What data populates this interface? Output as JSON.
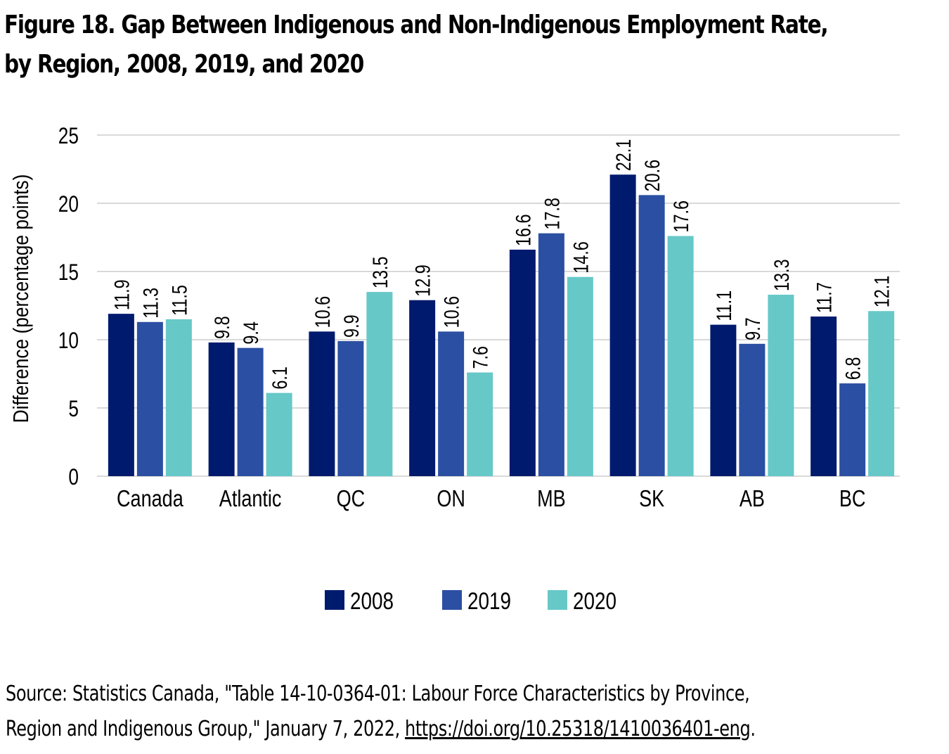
{
  "figure": {
    "title_line1": "Figure 18. Gap Between Indigenous and Non-Indigenous Employment Rate,",
    "title_line2": "by Region, 2008, 2019, and 2020",
    "source_line1": "Source: Statistics Canada, \"Table 14-10-0364-01: Labour Force Characteristics by Province,",
    "source_line2_text": "Region and Indigenous Group,\" January 7, 2022, ",
    "source_link": "https://doi.org/10.25318/1410036401-eng",
    "source_end": "."
  },
  "chart_data": {
    "type": "bar",
    "title": "Figure 18. Gap Between Indigenous and Non-Indigenous Employment Rate, by Region, 2008, 2019, and 2020",
    "xlabel": "",
    "ylabel": "Difference (percentage points)",
    "ylim": [
      0,
      25
    ],
    "yticks": [
      0,
      5,
      10,
      15,
      20,
      25
    ],
    "grid": true,
    "legend_position": "bottom-center",
    "categories": [
      "Canada",
      "Atlantic",
      "QC",
      "ON",
      "MB",
      "SK",
      "AB",
      "BC"
    ],
    "series": [
      {
        "name": "2008",
        "color": "#001A6E",
        "values": [
          11.9,
          9.8,
          10.6,
          12.9,
          16.6,
          22.1,
          11.1,
          11.7
        ]
      },
      {
        "name": "2019",
        "color": "#2B4FA2",
        "values": [
          11.3,
          9.4,
          9.9,
          10.6,
          17.8,
          20.6,
          9.7,
          6.8
        ]
      },
      {
        "name": "2020",
        "color": "#67C8C8",
        "values": [
          11.5,
          6.1,
          13.5,
          7.6,
          14.6,
          17.6,
          13.3,
          12.1
        ]
      }
    ]
  }
}
